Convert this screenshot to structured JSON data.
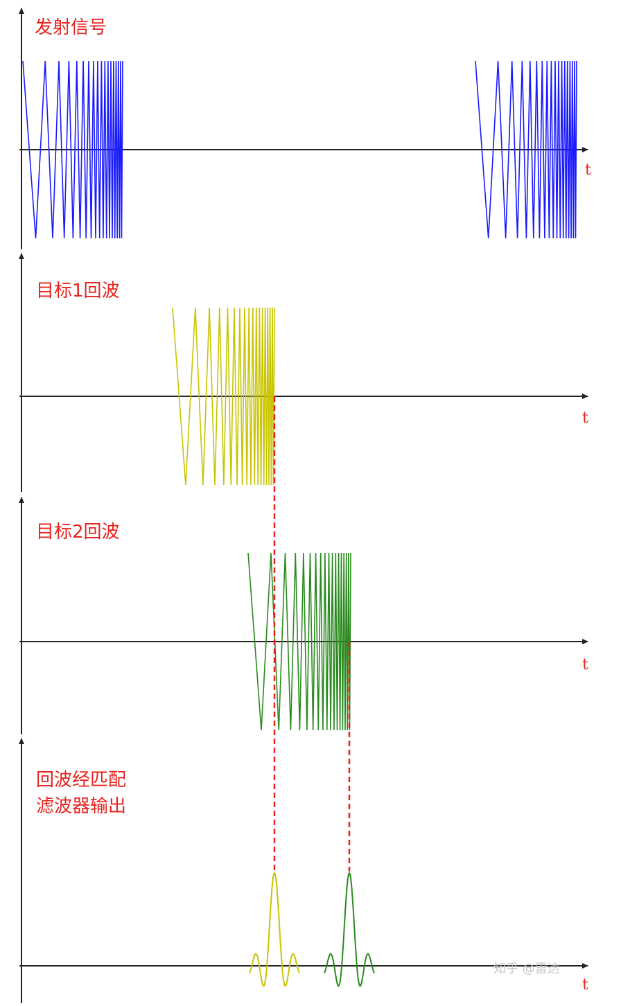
{
  "panels": [
    {
      "id": "transmit",
      "title": [
        "发射信号"
      ],
      "axis_label": "t",
      "color": "#1a1aff"
    },
    {
      "id": "echo1",
      "title": [
        "目标1回波"
      ],
      "axis_label": "t",
      "color": "#c8c400"
    },
    {
      "id": "echo2",
      "title": [
        "目标2回波"
      ],
      "axis_label": "t",
      "color": "#2a8a1e"
    },
    {
      "id": "matched",
      "title": [
        "回波经匹配",
        "滤波器输出"
      ],
      "axis_label": "t",
      "colors": [
        "#c8c400",
        "#2a8a1e"
      ]
    }
  ],
  "guide_color": "#e8231e",
  "watermark": "知乎 @雷达"
}
